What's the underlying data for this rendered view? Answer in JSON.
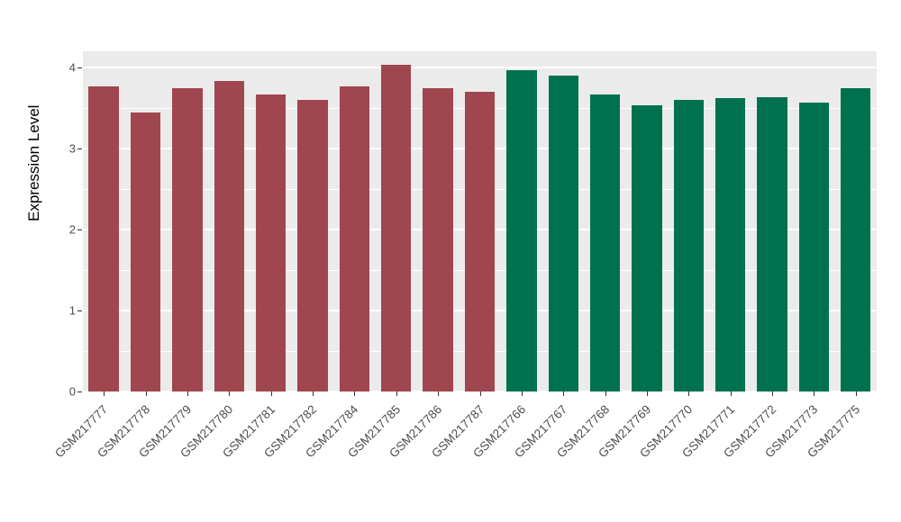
{
  "chart_data": {
    "type": "bar",
    "title": "",
    "xlabel": "",
    "ylabel": "Expression Level",
    "ylim": [
      0,
      4.2
    ],
    "yticks": [
      0,
      1,
      2,
      3,
      4
    ],
    "minor_ticks": [
      0.5,
      1.5,
      2.5,
      3.5
    ],
    "grid": "on",
    "legend_position": "none",
    "plot_background": "#EBEBEB",
    "gridline_color": "#FFFFFF",
    "axis_text_color": "#4D4D4D",
    "group_colors": {
      "groupA": "#A0464F",
      "groupB": "#00714F"
    },
    "categories": [
      "GSM217777",
      "GSM217778",
      "GSM217779",
      "GSM217780",
      "GSM217781",
      "GSM217782",
      "GSM217784",
      "GSM217785",
      "GSM217786",
      "GSM217787",
      "GSM217766",
      "GSM217767",
      "GSM217768",
      "GSM217769",
      "GSM217770",
      "GSM217771",
      "GSM217772",
      "GSM217773",
      "GSM217775"
    ],
    "values": [
      3.77,
      3.44,
      3.75,
      3.83,
      3.67,
      3.6,
      3.77,
      4.03,
      3.74,
      3.7,
      3.97,
      3.9,
      3.67,
      3.53,
      3.6,
      3.62,
      3.63,
      3.57,
      3.74
    ],
    "groups": [
      "groupA",
      "groupA",
      "groupA",
      "groupA",
      "groupA",
      "groupA",
      "groupA",
      "groupA",
      "groupA",
      "groupA",
      "groupB",
      "groupB",
      "groupB",
      "groupB",
      "groupB",
      "groupB",
      "groupB",
      "groupB",
      "groupB"
    ]
  }
}
